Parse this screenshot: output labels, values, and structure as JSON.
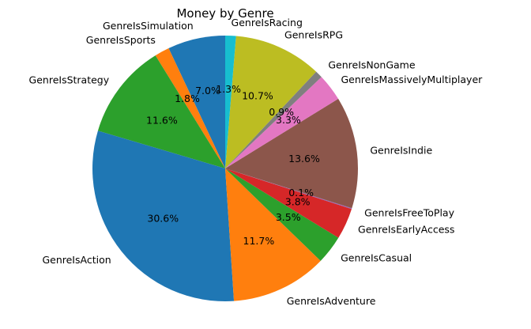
{
  "chart_data": {
    "type": "pie",
    "title": "Money by Genre",
    "start_angle_deg": 90,
    "direction": "counterclockwise",
    "slices": [
      {
        "label": "GenreIsSimulation",
        "value": 7.0,
        "pct_label": "7.0%",
        "color": "#1f77b4"
      },
      {
        "label": "GenreIsSports",
        "value": 1.8,
        "pct_label": "1.8%",
        "color": "#ff7f0e"
      },
      {
        "label": "GenreIsStrategy",
        "value": 11.6,
        "pct_label": "11.6%",
        "color": "#2ca02c"
      },
      {
        "label": "GenreIsAction",
        "value": 30.6,
        "pct_label": "30.6%",
        "color": "#1f77b4"
      },
      {
        "label": "GenreIsAdventure",
        "value": 11.7,
        "pct_label": "11.7%",
        "color": "#ff7f0e"
      },
      {
        "label": "GenreIsCasual",
        "value": 3.5,
        "pct_label": "3.5%",
        "color": "#2ca02c"
      },
      {
        "label": "GenreIsEarlyAccess",
        "value": 3.8,
        "pct_label": "3.8%",
        "color": "#d62728"
      },
      {
        "label": "GenreIsFreeToPlay",
        "value": 0.1,
        "pct_label": "0.1%",
        "color": "#9467bd"
      },
      {
        "label": "GenreIsIndie",
        "value": 13.6,
        "pct_label": "13.6%",
        "color": "#8c564b"
      },
      {
        "label": "GenreIsMassivelyMultiplayer",
        "value": 3.3,
        "pct_label": "3.3%",
        "color": "#e377c2"
      },
      {
        "label": "GenreIsNonGame",
        "value": 0.9,
        "pct_label": "0.9%",
        "color": "#7f7f7f"
      },
      {
        "label": "GenreIsRPG",
        "value": 10.7,
        "pct_label": "10.7%",
        "color": "#bcbd22"
      },
      {
        "label": "GenreIsRacing",
        "value": 1.3,
        "pct_label": "1.3%",
        "color": "#17becf"
      }
    ]
  }
}
